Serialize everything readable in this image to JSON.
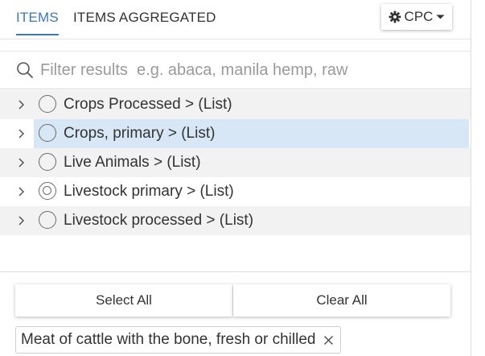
{
  "tabs": [
    {
      "label": "ITEMS",
      "active": true
    },
    {
      "label": "ITEMS AGGREGATED",
      "active": false
    }
  ],
  "classification_button": {
    "label": "CPC",
    "icon": "gear-icon",
    "dropdown_icon": "caret-down-icon"
  },
  "filter": {
    "placeholder": "Filter results  e.g. abaca, manila hemp, raw",
    "value": "",
    "icon": "search-icon"
  },
  "tree": {
    "items": [
      {
        "label": "Crops Processed > (List)",
        "state": "unchecked"
      },
      {
        "label": "Crops, primary > (List)",
        "state": "unchecked",
        "highlighted": true
      },
      {
        "label": "Live Animals > (List)",
        "state": "unchecked"
      },
      {
        "label": "Livestock primary > (List)",
        "state": "partial"
      },
      {
        "label": "Livestock processed > (List)",
        "state": "unchecked"
      }
    ]
  },
  "actions": {
    "select_all": "Select All",
    "clear_all": "Clear All"
  },
  "selected_chips": [
    {
      "label": "Meat of cattle with the bone, fresh or chilled"
    }
  ],
  "colors": {
    "accent": "#3d78b5",
    "row_highlight": "#d8e7f5",
    "row_alt": "#f2f2f2"
  }
}
